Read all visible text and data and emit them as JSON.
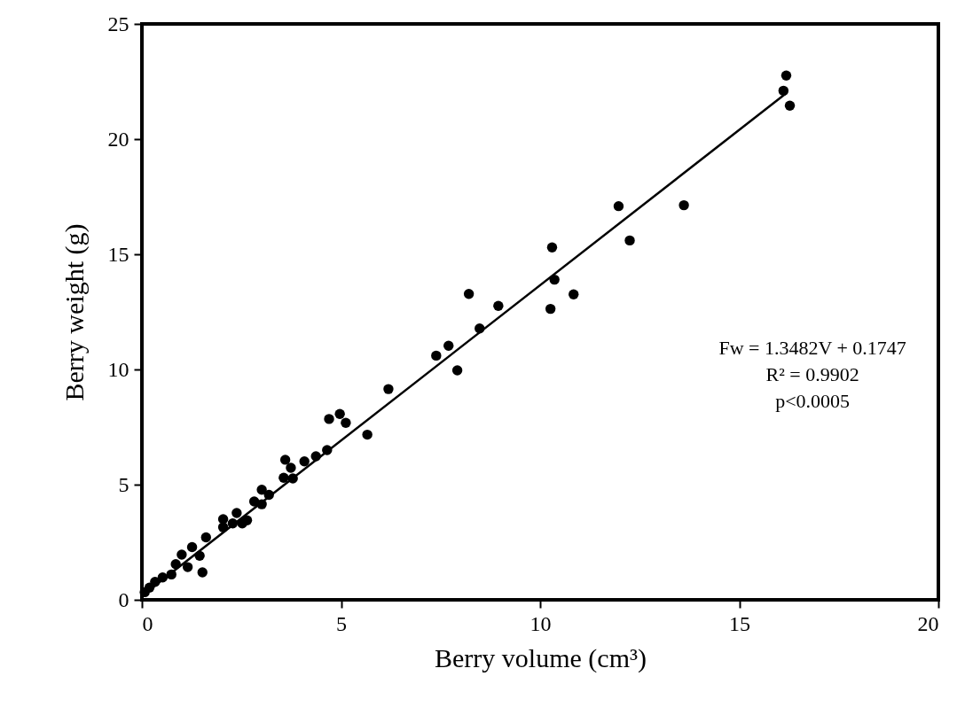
{
  "chart_data": {
    "type": "scatter",
    "xlabel": "Berry volume (cm³)",
    "ylabel": "Berry weight (g)",
    "xlim": [
      0,
      20
    ],
    "ylim": [
      0,
      25
    ],
    "xticks": [
      0,
      5,
      10,
      15,
      20
    ],
    "yticks": [
      0,
      5,
      10,
      15,
      20,
      25
    ],
    "annotations": [
      "Fw = 1.3482V + 0.1747",
      "R² = 0.9902",
      "p<0.0005"
    ],
    "series": [
      {
        "marker": "circle",
        "color": "#000000",
        "x": [
          16.18,
          16.11,
          16.27,
          11.97,
          13.61,
          12.25,
          10.3,
          10.36,
          10.84,
          10.26,
          8.21,
          8.95,
          8.48,
          7.7,
          7.39,
          7.92,
          6.19,
          5.66,
          5.12,
          4.97,
          4.7,
          4.65,
          4.37,
          4.08,
          3.6,
          3.74,
          3.67,
          3.56,
          3.79,
          3.01,
          3.19,
          2.82,
          3.01,
          2.38,
          2.04,
          2.64,
          2.28,
          2.52,
          2.04,
          1.61,
          1.26,
          1.0,
          1.45,
          1.52,
          1.15,
          0.85,
          0.74,
          0.52,
          0.33,
          0.19,
          0.07
        ],
        "values": [
          22.76,
          22.1,
          21.45,
          17.09,
          17.13,
          15.6,
          15.3,
          13.9,
          13.26,
          12.63,
          13.28,
          12.76,
          11.78,
          11.03,
          10.6,
          9.96,
          9.15,
          7.17,
          7.68,
          8.07,
          7.85,
          6.5,
          6.23,
          6.01,
          6.08,
          5.73,
          null,
          5.3,
          5.27,
          4.78,
          4.56,
          4.27,
          4.15,
          3.77,
          3.5,
          3.45,
          3.32,
          3.32,
          3.15,
          2.71,
          2.29,
          1.96,
          1.91,
          1.19,
          1.42,
          1.55,
          1.1,
          0.97,
          0.78,
          0.53,
          0.33
        ]
      },
      {
        "type": "line",
        "color": "#000000",
        "x": [
          0,
          16.2
        ],
        "values": [
          0.17,
          22.02
        ]
      }
    ]
  }
}
